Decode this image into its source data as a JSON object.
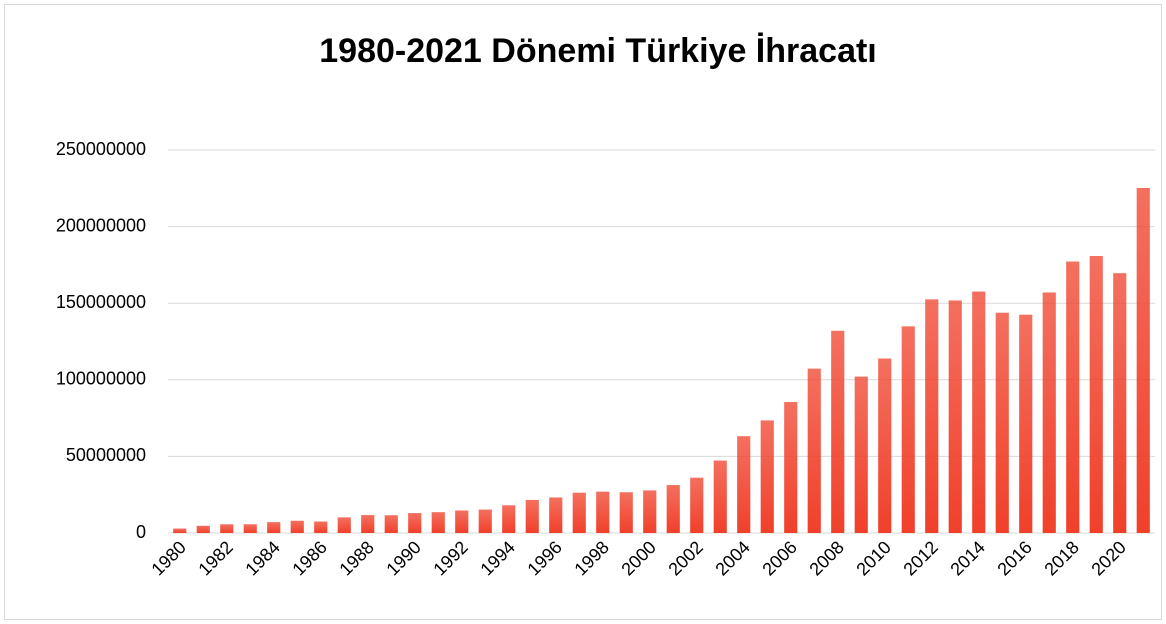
{
  "chart_data": {
    "type": "bar",
    "title": "1980-2021 Dönemi Türkiye İhracatı",
    "categories": [
      "1980",
      null,
      "1982",
      null,
      "1984",
      null,
      "1986",
      null,
      "1988",
      null,
      "1990",
      null,
      "1992",
      null,
      "1994",
      null,
      "1996",
      null,
      "1998",
      null,
      "2000",
      null,
      "2002",
      null,
      "2004",
      null,
      "2006",
      null,
      "2008",
      null,
      "2010",
      null,
      "2012",
      null,
      "2014",
      null,
      "2016",
      null,
      "2018",
      null,
      "2020",
      null
    ],
    "values": [
      2900000,
      4700000,
      5700000,
      5700000,
      7100000,
      8000000,
      7500000,
      10200000,
      11700000,
      11600000,
      13000000,
      13600000,
      14700000,
      15300000,
      18100000,
      21600000,
      23200000,
      26300000,
      27000000,
      26600000,
      27800000,
      31300000,
      36100000,
      47300000,
      63200000,
      73500000,
      85500000,
      107300000,
      132000000,
      102100000,
      113900000,
      134900000,
      152500000,
      151800000,
      157600000,
      143800000,
      142500000,
      157000000,
      177200000,
      180800000,
      169600000,
      225200000
    ],
    "color": "#f0402a",
    "ylim": [
      0,
      250000000
    ],
    "yticks": [
      0,
      50000000,
      100000000,
      150000000,
      200000000,
      250000000
    ],
    "grid": true
  }
}
